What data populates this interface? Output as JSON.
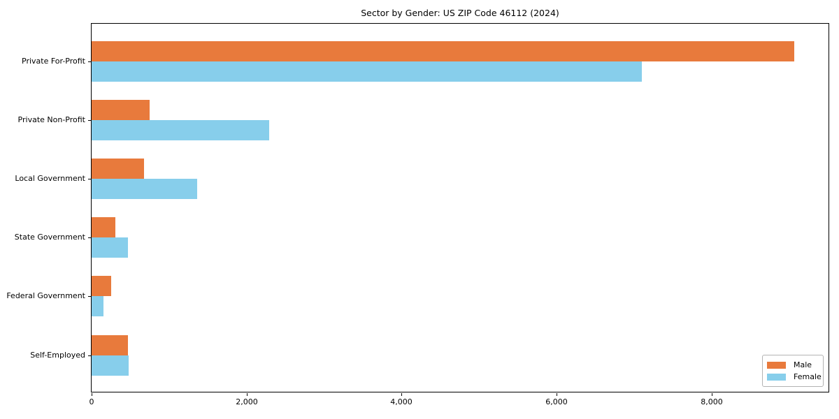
{
  "chart_data": {
    "type": "bar",
    "orientation": "horizontal",
    "title": "Sector by Gender: US ZIP Code 46112 (2024)",
    "categories": [
      "Private For-Profit",
      "Private Non-Profit",
      "Local Government",
      "State Government",
      "Federal Government",
      "Self-Employed"
    ],
    "series": [
      {
        "name": "Male",
        "color": "#E87A3C",
        "values": [
          9070,
          750,
          680,
          310,
          255,
          470
        ]
      },
      {
        "name": "Female",
        "color": "#87CEEB",
        "values": [
          7100,
          2290,
          1360,
          470,
          150,
          480
        ]
      }
    ],
    "xlabel": "",
    "ylabel": "",
    "xlim": [
      0,
      9520
    ],
    "xticks": [
      0,
      2000,
      4000,
      6000,
      8000
    ],
    "xtick_labels": [
      "0",
      "2,000",
      "4,000",
      "6,000",
      "8,000"
    ],
    "grid": false,
    "legend": {
      "position": "lower-right",
      "entries": [
        "Male",
        "Female"
      ]
    },
    "axis_color": "#000000",
    "background_color": "#ffffff"
  }
}
